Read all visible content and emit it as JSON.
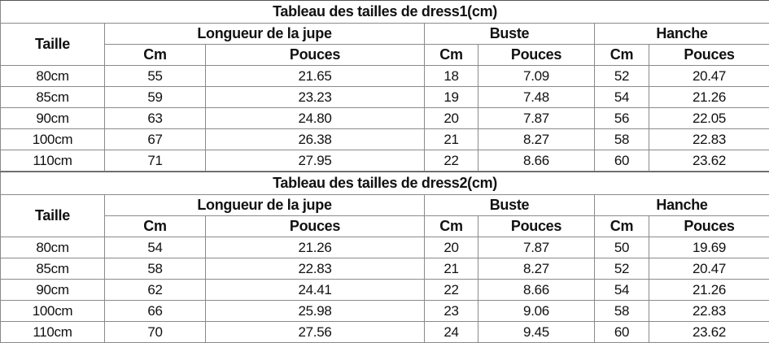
{
  "headers": {
    "size": "Taille",
    "skirt_length": "Longueur de la jupe",
    "bust": "Buste",
    "hip": "Hanche",
    "cm": "Cm",
    "inches": "Pouces"
  },
  "tables": [
    {
      "title": "Tableau des tailles de dress1(cm)",
      "rows": [
        {
          "size": "80cm",
          "skirt_cm": "55",
          "skirt_in": "21.65",
          "bust_cm": "18",
          "bust_in": "7.09",
          "hip_cm": "52",
          "hip_in": "20.47"
        },
        {
          "size": "85cm",
          "skirt_cm": "59",
          "skirt_in": "23.23",
          "bust_cm": "19",
          "bust_in": "7.48",
          "hip_cm": "54",
          "hip_in": "21.26"
        },
        {
          "size": "90cm",
          "skirt_cm": "63",
          "skirt_in": "24.80",
          "bust_cm": "20",
          "bust_in": "7.87",
          "hip_cm": "56",
          "hip_in": "22.05"
        },
        {
          "size": "100cm",
          "skirt_cm": "67",
          "skirt_in": "26.38",
          "bust_cm": "21",
          "bust_in": "8.27",
          "hip_cm": "58",
          "hip_in": "22.83"
        },
        {
          "size": "110cm",
          "skirt_cm": "71",
          "skirt_in": "27.95",
          "bust_cm": "22",
          "bust_in": "8.66",
          "hip_cm": "60",
          "hip_in": "23.62"
        }
      ]
    },
    {
      "title": "Tableau des tailles de dress2(cm)",
      "rows": [
        {
          "size": "80cm",
          "skirt_cm": "54",
          "skirt_in": "21.26",
          "bust_cm": "20",
          "bust_in": "7.87",
          "hip_cm": "50",
          "hip_in": "19.69"
        },
        {
          "size": "85cm",
          "skirt_cm": "58",
          "skirt_in": "22.83",
          "bust_cm": "21",
          "bust_in": "8.27",
          "hip_cm": "52",
          "hip_in": "20.47"
        },
        {
          "size": "90cm",
          "skirt_cm": "62",
          "skirt_in": "24.41",
          "bust_cm": "22",
          "bust_in": "8.66",
          "hip_cm": "54",
          "hip_in": "21.26"
        },
        {
          "size": "100cm",
          "skirt_cm": "66",
          "skirt_in": "25.98",
          "bust_cm": "23",
          "bust_in": "9.06",
          "hip_cm": "58",
          "hip_in": "22.83"
        },
        {
          "size": "110cm",
          "skirt_cm": "70",
          "skirt_in": "27.56",
          "bust_cm": "24",
          "bust_in": "9.45",
          "hip_cm": "60",
          "hip_in": "23.62"
        }
      ]
    }
  ]
}
